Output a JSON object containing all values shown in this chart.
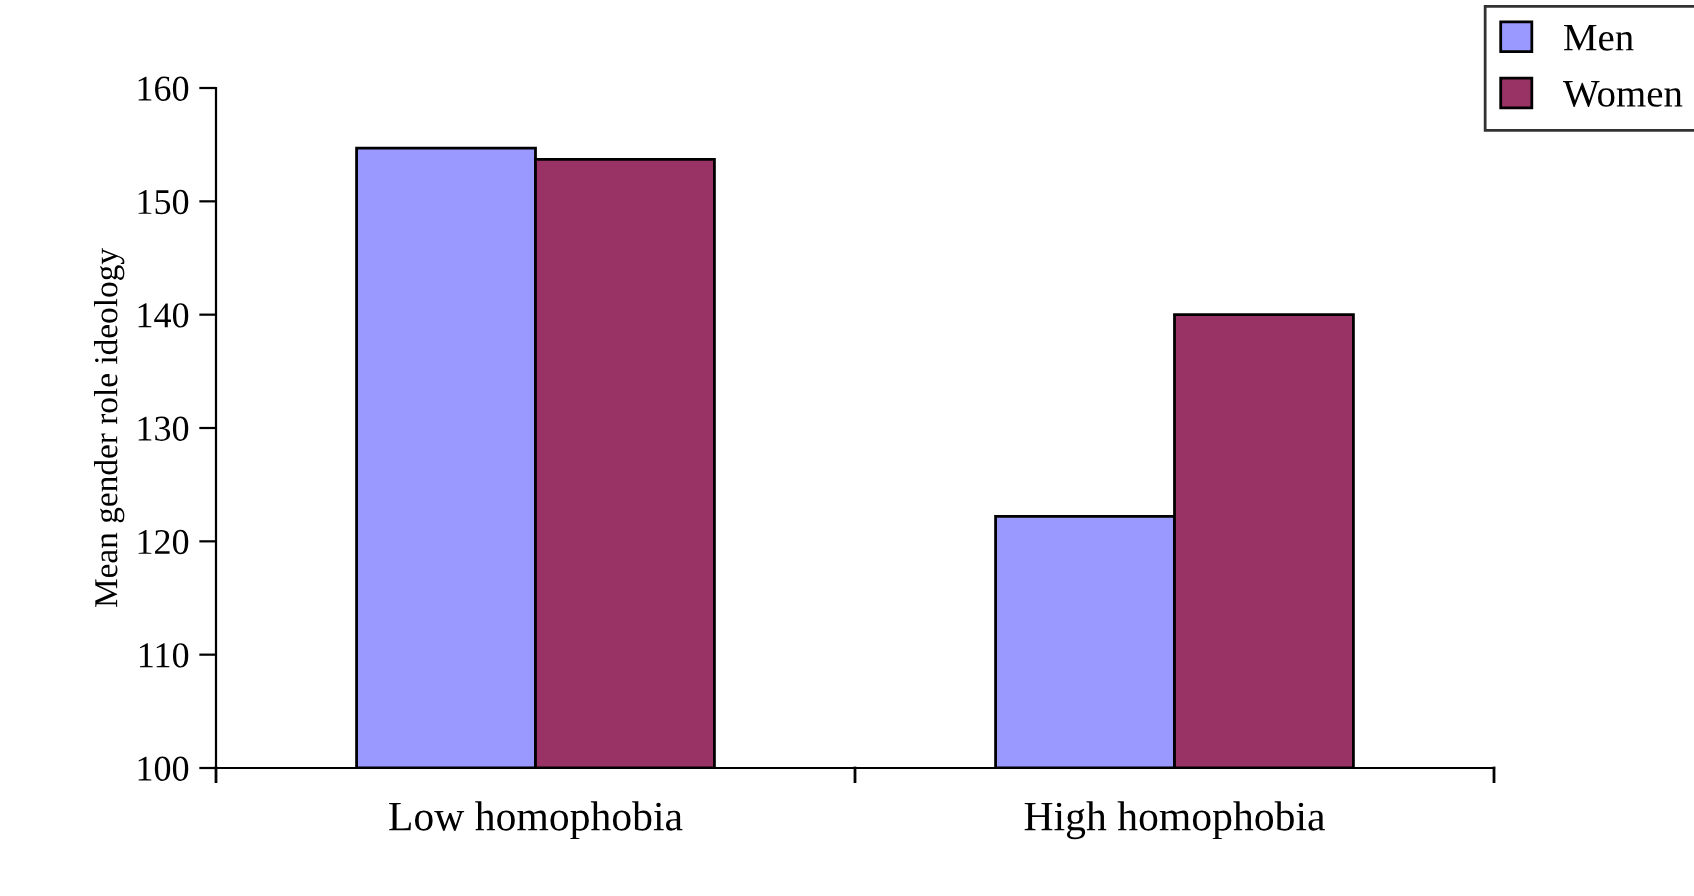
{
  "chart_data": {
    "type": "bar",
    "ylabel": "Mean gender role ideology",
    "categories": [
      "Low homophobia",
      "High homophobia"
    ],
    "series": [
      {
        "name": "Men",
        "color": "#9999ff",
        "values": [
          154.7,
          122.2
        ]
      },
      {
        "name": "Women",
        "color": "#993366",
        "values": [
          153.7,
          140
        ]
      }
    ],
    "ylim": [
      100,
      160
    ],
    "yticks": [
      100,
      110,
      120,
      130,
      140,
      150,
      160
    ],
    "grid": false,
    "legend": "top right"
  }
}
